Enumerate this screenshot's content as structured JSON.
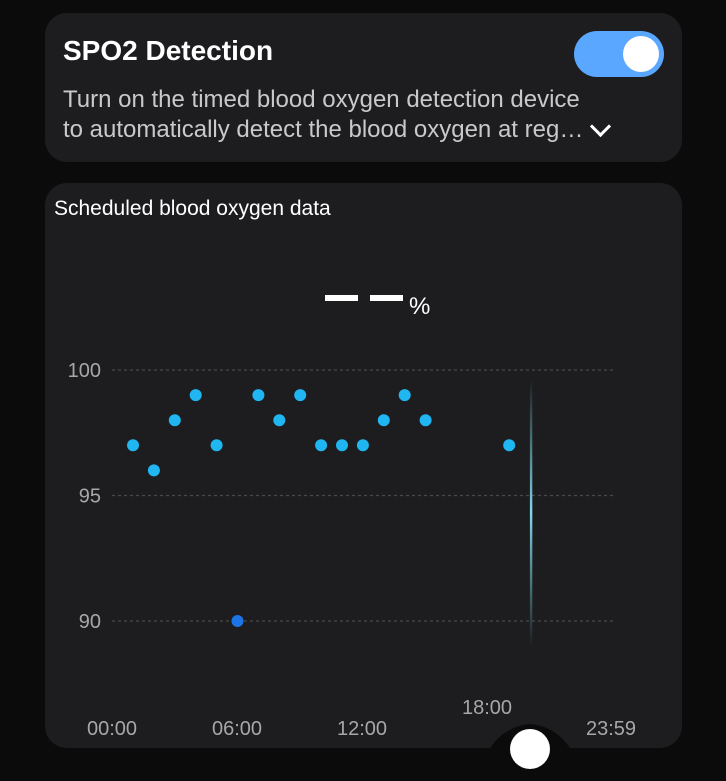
{
  "spo2": {
    "title": "SPO2 Detection",
    "desc_line1": "Turn on the timed blood oxygen detection device",
    "desc_line2": "to automatically detect the blood oxygen at reg…",
    "toggle_on": true,
    "accent": "#5aa7ff"
  },
  "chart_section": {
    "title": "Scheduled blood oxygen data",
    "reading_value": "– –",
    "reading_unit": "%"
  },
  "chart_data": {
    "type": "scatter",
    "x_labels": [
      "00:00",
      "06:00",
      "12:00",
      "18:00",
      "23:59"
    ],
    "y_ticks": [
      100,
      95,
      90
    ],
    "ylim": [
      90,
      100
    ],
    "grid": true,
    "point_color": "#1fb6f2",
    "highlight_color": "#1c74e6",
    "cursor_time": "20:00",
    "points": [
      {
        "x": "01:00",
        "y": 97
      },
      {
        "x": "02:00",
        "y": 96
      },
      {
        "x": "03:00",
        "y": 98
      },
      {
        "x": "04:00",
        "y": 99
      },
      {
        "x": "05:00",
        "y": 97
      },
      {
        "x": "06:00",
        "y": 90,
        "highlight": true
      },
      {
        "x": "07:00",
        "y": 99
      },
      {
        "x": "08:00",
        "y": 98
      },
      {
        "x": "09:00",
        "y": 99
      },
      {
        "x": "10:00",
        "y": 97
      },
      {
        "x": "11:00",
        "y": 97
      },
      {
        "x": "12:00",
        "y": 97
      },
      {
        "x": "13:00",
        "y": 98
      },
      {
        "x": "14:00",
        "y": 99
      },
      {
        "x": "15:00",
        "y": 98
      },
      {
        "x": "19:00",
        "y": 97
      }
    ]
  }
}
